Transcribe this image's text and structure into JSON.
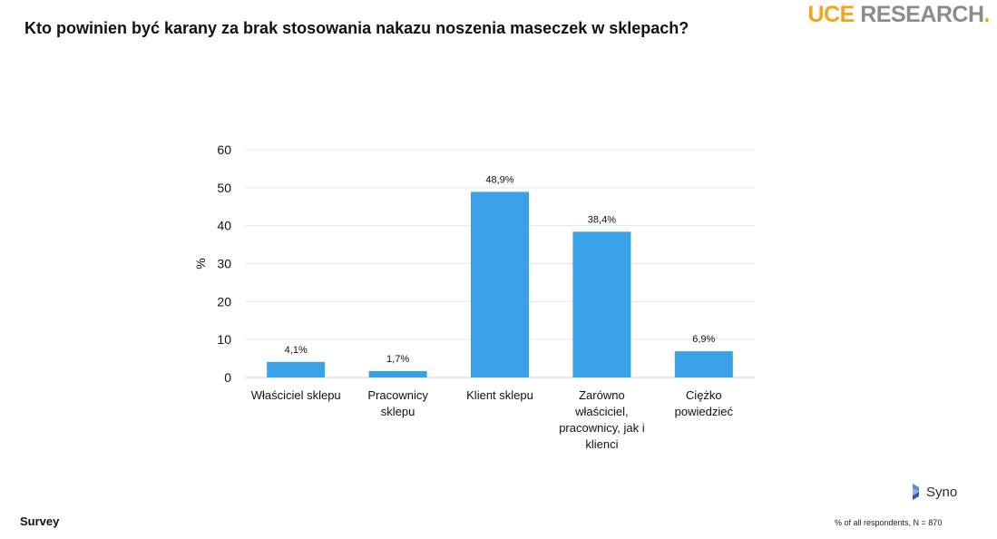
{
  "header": {
    "title": "Kto powinien być karany za brak stosowania nakazu noszenia maseczek w sklepach?",
    "brand_part1": "UCE",
    "brand_part2": " RESEARCH",
    "brand_dot": "."
  },
  "footer": {
    "left": "Survey",
    "note": "% of all respondents, N = 870",
    "partner": "Syno"
  },
  "colors": {
    "bar": "#3aa1e8",
    "brand_orange": "#f2a51c",
    "brand_gray": "#8c8c8c"
  },
  "chart_data": {
    "type": "bar",
    "categories": [
      "Właściciel sklepu",
      "Pracownicy sklepu",
      "Klient sklepu",
      "Zarówno właściciel, pracownicy, jak i klienci",
      "Ciężko powiedzieć"
    ],
    "category_lines": [
      [
        "Właściciel sklepu"
      ],
      [
        "Pracownicy",
        "sklepu"
      ],
      [
        "Klient sklepu"
      ],
      [
        "Zarówno",
        "właściciel,",
        "pracownicy, jak i",
        "klienci"
      ],
      [
        "Ciężko",
        "powiedzieć"
      ]
    ],
    "values": [
      4.1,
      1.7,
      48.9,
      38.4,
      6.9
    ],
    "data_labels": [
      "4,1%",
      "1,7%",
      "48,9%",
      "38,4%",
      "6,9%"
    ],
    "ylabel": "%",
    "ylim": [
      0,
      60
    ],
    "yticks": [
      0,
      10,
      20,
      30,
      40,
      50,
      60
    ],
    "grid": true,
    "legend": "none"
  }
}
